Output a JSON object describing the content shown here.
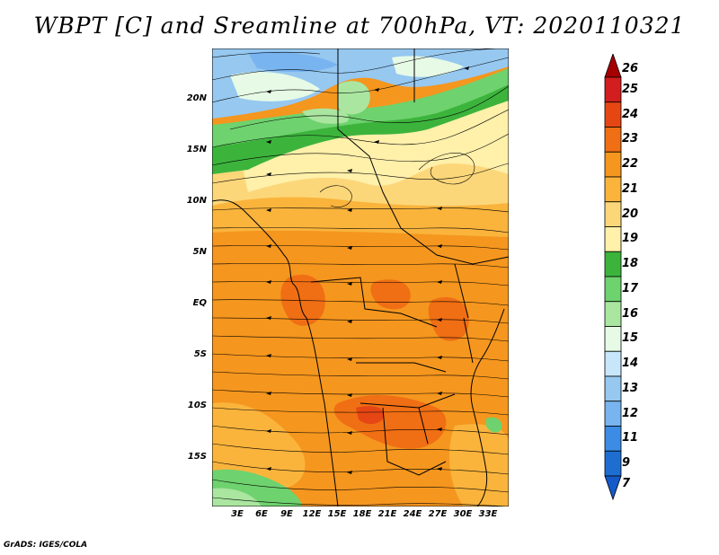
{
  "title": "WBPT [C] and Sreamline at 700hPa, VT: 2020110321",
  "lat_labels": [
    "20N",
    "15N",
    "10N",
    "5N",
    "EQ",
    "5S",
    "10S",
    "15S"
  ],
  "lon_labels": [
    "3E",
    "6E",
    "9E",
    "12E",
    "15E",
    "18E",
    "21E",
    "24E",
    "27E",
    "30E",
    "33E"
  ],
  "colorbar": {
    "labels": [
      "26",
      "25",
      "24",
      "23",
      "22",
      "21",
      "20",
      "19",
      "18",
      "17",
      "16",
      "15",
      "14",
      "13",
      "12",
      "11",
      "9",
      "7"
    ],
    "colors": [
      "#a50000",
      "#d21e1e",
      "#e64614",
      "#f06e14",
      "#f5961e",
      "#fab43c",
      "#fcd77a",
      "#fff0aa",
      "#3cb43c",
      "#6ed26e",
      "#aae6a0",
      "#e6fae6",
      "#c8e6fa",
      "#96c8f0",
      "#78b4f0",
      "#3c8ce6",
      "#1e6ed2",
      "#145ac8"
    ]
  },
  "credit": "GrADS: IGES/COLA"
}
